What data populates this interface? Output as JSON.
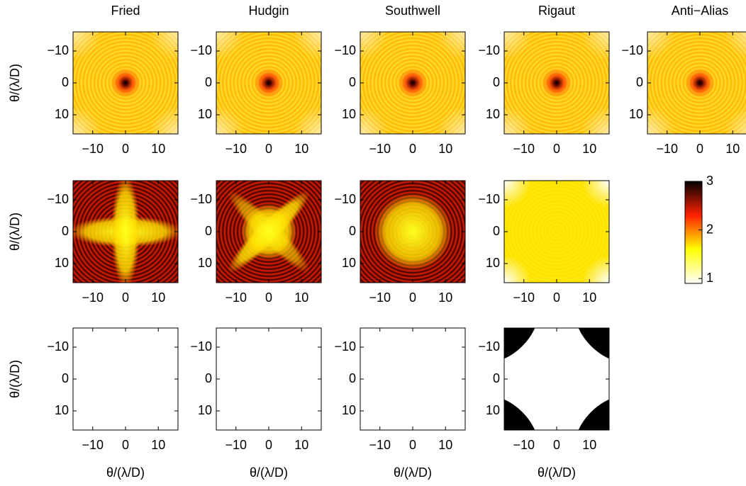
{
  "chart_data": {
    "type": "image-grid",
    "column_titles": [
      "Fried",
      "Hudgin",
      "Southwell",
      "Rigaut",
      "Anti−Alias"
    ],
    "xlabel": "θ/(λ/D)",
    "ylabel": "θ/(λ/D)",
    "xlim": [
      -16,
      16
    ],
    "ylim": [
      -16,
      16
    ],
    "xticks": [
      {
        "value": -10,
        "label": "−10"
      },
      0,
      10
    ],
    "yticks": [
      {
        "value": -10,
        "label": "−10"
      },
      0,
      10
    ],
    "colorbar": {
      "lim": [
        0.9,
        3
      ],
      "ticks": [
        1,
        2,
        3
      ],
      "colors": [
        "#ffffff",
        "#ffff00",
        "#ff2000",
        "#000000"
      ]
    }
  }
}
